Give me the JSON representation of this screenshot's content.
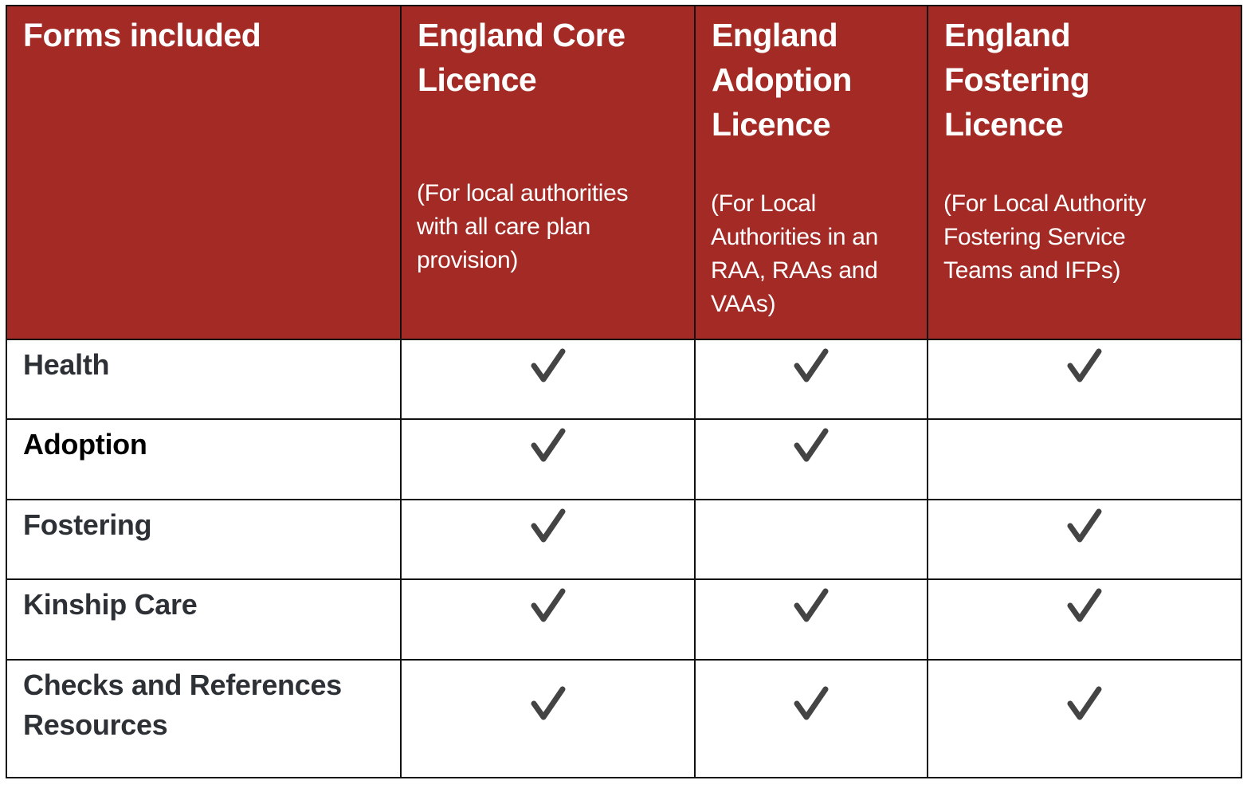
{
  "colors": {
    "header_bg": "#a32a25",
    "header_text": "#ffffff",
    "check": "#444444",
    "border": "#111111"
  },
  "columns": [
    {
      "title": [
        "Forms included"
      ],
      "subtitle": []
    },
    {
      "title": [
        "England Core",
        "Licence"
      ],
      "subtitle": [
        "(For local authorities",
        "with all care plan",
        "provision)"
      ]
    },
    {
      "title": [
        "England",
        "Adoption",
        "Licence"
      ],
      "subtitle": [
        "(For Local",
        "Authorities in an",
        "RAA, RAAs and",
        "VAAs)"
      ]
    },
    {
      "title": [
        "England",
        "Fostering",
        "Licence"
      ],
      "subtitle": [
        "(For Local Authority",
        "Fostering Service",
        "Teams and IFPs)"
      ]
    }
  ],
  "rows": [
    {
      "label": [
        "Health"
      ],
      "checks": [
        true,
        true,
        true
      ]
    },
    {
      "label": [
        "Adoption"
      ],
      "checks": [
        true,
        true,
        false
      ]
    },
    {
      "label": [
        "Fostering"
      ],
      "checks": [
        true,
        false,
        true
      ]
    },
    {
      "label": [
        "Kinship Care"
      ],
      "checks": [
        true,
        true,
        true
      ]
    },
    {
      "label": [
        "Checks and References",
        "Resources"
      ],
      "checks": [
        true,
        true,
        true
      ]
    }
  ],
  "check_icon": "check-mark-icon"
}
